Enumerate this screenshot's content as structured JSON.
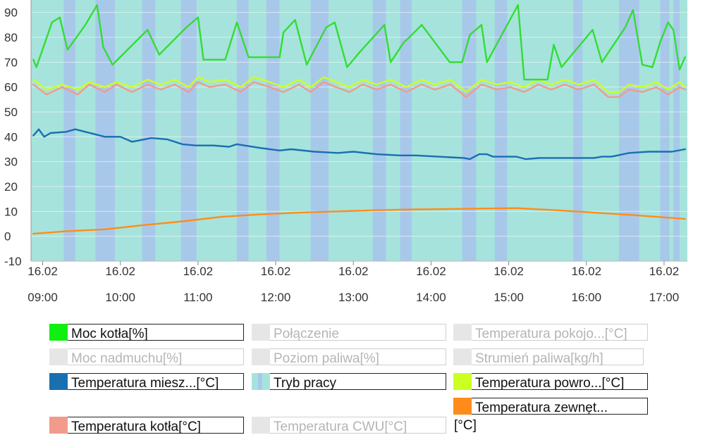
{
  "chart_data": {
    "type": "line",
    "ylim": [
      -10,
      95
    ],
    "yticks": [
      -10,
      0,
      10,
      20,
      30,
      40,
      50,
      60,
      70,
      80,
      90
    ],
    "xlim_hours": [
      8.85,
      17.3
    ],
    "xticks": [
      {
        "date": "16.02",
        "time": "09:00",
        "h": 9
      },
      {
        "date": "16.02",
        "time": "10:00",
        "h": 10
      },
      {
        "date": "16.02",
        "time": "11:00",
        "h": 11
      },
      {
        "date": "16.02",
        "time": "12:00",
        "h": 12
      },
      {
        "date": "16.02",
        "time": "13:00",
        "h": 13
      },
      {
        "date": "16.02",
        "time": "14:00",
        "h": 14
      },
      {
        "date": "16.02",
        "time": "15:00",
        "h": 15
      },
      {
        "date": "16.02",
        "time": "16:00",
        "h": 16
      },
      {
        "date": "16.02",
        "time": "17:00",
        "h": 17
      }
    ],
    "mode_bands": {
      "name": "Tryb pracy",
      "base_color": "#a6e3dc",
      "alt_color": "#a8c8ea",
      "alt_intervals_hours": [
        [
          9.27,
          9.42
        ],
        [
          9.68,
          9.93
        ],
        [
          10.28,
          10.45
        ],
        [
          10.78,
          10.98
        ],
        [
          11.5,
          11.65
        ],
        [
          11.88,
          12.05
        ],
        [
          12.45,
          12.68
        ],
        [
          13.25,
          13.42
        ],
        [
          13.6,
          13.75
        ],
        [
          14.4,
          14.58
        ],
        [
          14.82,
          14.98
        ],
        [
          15.83,
          15.95
        ],
        [
          16.42,
          16.68
        ],
        [
          16.95,
          17.07
        ],
        [
          17.12,
          17.2
        ]
      ]
    },
    "series": [
      {
        "name": "Moc kotła[%]",
        "color": "#33dd33",
        "x": [
          8.88,
          8.92,
          9.12,
          9.22,
          9.32,
          9.55,
          9.7,
          9.78,
          9.9,
          10.35,
          10.5,
          10.85,
          11.0,
          11.07,
          11.35,
          11.5,
          11.65,
          11.7,
          12.05,
          12.1,
          12.25,
          12.4,
          12.65,
          12.76,
          12.92,
          13.08,
          13.4,
          13.48,
          13.65,
          13.72,
          13.88,
          14.24,
          14.4,
          14.5,
          14.65,
          14.72,
          15.12,
          15.2,
          15.4,
          15.5,
          15.58,
          15.68,
          16.0,
          16.08,
          16.2,
          16.5,
          16.6,
          16.72,
          16.85,
          16.95,
          17.05,
          17.12,
          17.2,
          17.27
        ],
        "y": [
          71,
          68,
          86,
          88,
          75,
          85,
          93,
          76,
          69,
          83,
          73,
          84,
          88,
          71,
          71,
          86,
          72,
          72,
          72,
          82,
          87,
          69,
          84,
          86,
          68,
          74,
          85,
          70,
          78,
          80,
          85,
          70,
          70,
          81,
          85,
          70,
          93,
          63,
          63,
          63,
          77,
          68,
          80,
          83,
          70,
          84,
          91,
          69,
          68,
          78,
          86,
          83,
          67,
          72
        ]
      },
      {
        "name": "Temperatura powro...[°C]",
        "color": "#ccff22",
        "x": [
          8.88,
          9.05,
          9.25,
          9.45,
          9.6,
          9.8,
          9.95,
          10.15,
          10.35,
          10.52,
          10.7,
          10.88,
          11.0,
          11.15,
          11.35,
          11.55,
          11.72,
          11.92,
          12.1,
          12.3,
          12.45,
          12.62,
          12.78,
          12.95,
          13.12,
          13.3,
          13.48,
          13.68,
          13.88,
          14.05,
          14.25,
          14.45,
          14.65,
          14.85,
          15.02,
          15.2,
          15.38,
          15.55,
          15.72,
          15.9,
          16.1,
          16.28,
          16.42,
          16.55,
          16.72,
          16.9,
          17.05,
          17.2,
          17.27
        ],
        "y": [
          63,
          59,
          61,
          59,
          62,
          60,
          62,
          60,
          63,
          61,
          63,
          60,
          64,
          62,
          63,
          60,
          64,
          62,
          60,
          63,
          60,
          64,
          62,
          60,
          63,
          61,
          63,
          60,
          63,
          61,
          63,
          58,
          63,
          61,
          62,
          60,
          63,
          61,
          63,
          61,
          63,
          58,
          58,
          61,
          60,
          62,
          59,
          62,
          60
        ]
      },
      {
        "name": "Temperatura kotła[°C]",
        "color": "#f29a8c",
        "x": [
          8.88,
          9.05,
          9.25,
          9.45,
          9.6,
          9.8,
          9.95,
          10.15,
          10.35,
          10.52,
          10.7,
          10.88,
          11.0,
          11.15,
          11.35,
          11.55,
          11.72,
          11.92,
          12.1,
          12.3,
          12.45,
          12.62,
          12.78,
          12.95,
          13.12,
          13.3,
          13.48,
          13.68,
          13.88,
          14.05,
          14.25,
          14.45,
          14.65,
          14.85,
          15.02,
          15.2,
          15.38,
          15.55,
          15.72,
          15.9,
          16.1,
          16.28,
          16.42,
          16.55,
          16.72,
          16.9,
          17.05,
          17.2,
          17.27
        ],
        "y": [
          61,
          57,
          60,
          57,
          61,
          58,
          61,
          58,
          61,
          59,
          61,
          58,
          62,
          60,
          61,
          58,
          62,
          60,
          58,
          61,
          58,
          62,
          60,
          58,
          61,
          59,
          61,
          58,
          61,
          59,
          61,
          56,
          61,
          59,
          60,
          58,
          61,
          59,
          61,
          59,
          61,
          56,
          56,
          59,
          58,
          60,
          57,
          60,
          59
        ]
      },
      {
        "name": "Temperatura miesz...[°C]",
        "color": "#1a6fb0",
        "x": [
          8.88,
          8.95,
          9.02,
          9.1,
          9.3,
          9.42,
          9.55,
          9.8,
          10.0,
          10.15,
          10.4,
          10.6,
          10.8,
          10.97,
          11.2,
          11.4,
          11.5,
          11.8,
          12.05,
          12.2,
          12.5,
          12.8,
          13.0,
          13.3,
          13.6,
          13.8,
          14.1,
          14.42,
          14.5,
          14.62,
          14.72,
          14.8,
          15.1,
          15.22,
          15.4,
          15.65,
          15.78,
          16.1,
          16.2,
          16.32,
          16.4,
          16.55,
          16.8,
          17.0,
          17.1,
          17.27
        ],
        "y": [
          40.5,
          43,
          40,
          41.5,
          42,
          43,
          42,
          40,
          40,
          38,
          39.5,
          39,
          37,
          36.5,
          36.5,
          36,
          37,
          35.5,
          34.5,
          35,
          34,
          33.5,
          34,
          33,
          32.5,
          32.5,
          32,
          31.5,
          31,
          33,
          33,
          32,
          32,
          31,
          31.5,
          31.5,
          31.5,
          31.5,
          32,
          32,
          32.5,
          33.5,
          34,
          34,
          34,
          35
        ]
      },
      {
        "name": "Temperatura zewnęt...[°C]",
        "color": "#ff8c1a",
        "x": [
          8.88,
          9.3,
          9.8,
          10.3,
          10.8,
          11.3,
          11.8,
          12.3,
          12.8,
          13.3,
          13.8,
          14.3,
          14.8,
          15.1,
          15.6,
          16.1,
          16.6,
          17.27
        ],
        "y": [
          1,
          2,
          2.8,
          4.5,
          6,
          7.8,
          8.8,
          9.5,
          10,
          10.5,
          10.8,
          11,
          11.2,
          11.3,
          10.5,
          9.5,
          8.5,
          7
        ]
      }
    ]
  },
  "legend": [
    {
      "label": "Moc kotła[%]",
      "color": "#11ee11",
      "active": true
    },
    {
      "label": "Połączenie",
      "color": "#e6e6e6",
      "active": false
    },
    {
      "label": "Temperatura pokojo...[°C]",
      "color": "#e6e6e6",
      "active": false
    },
    {
      "label": "Moc nadmuchu[%]",
      "color": "#e6e6e6",
      "active": false
    },
    {
      "label": "Poziom paliwa[%]",
      "color": "#e6e6e6",
      "active": false
    },
    {
      "label": "Strumień paliwa[kg/h]",
      "color": "#e6e6e6",
      "active": false
    },
    {
      "label": "Temperatura miesz...[°C]",
      "color": "#1a6fb0",
      "active": true
    },
    {
      "label": "Tryb pracy",
      "color": "#a6e3dc",
      "active": true
    },
    {
      "label": "Temperatura powro...[°C]",
      "color": "#ccff22",
      "active": true
    },
    {
      "label": "Temperatura zewnęt...",
      "label_cont": "[°C]",
      "color": "#ff8c1a",
      "active": true
    },
    {
      "label": "Temperatura kotła[°C]",
      "color": "#f29a8c",
      "active": true
    },
    {
      "label": "Temperatura CWU[°C]",
      "color": "#e6e6e6",
      "active": false
    }
  ]
}
